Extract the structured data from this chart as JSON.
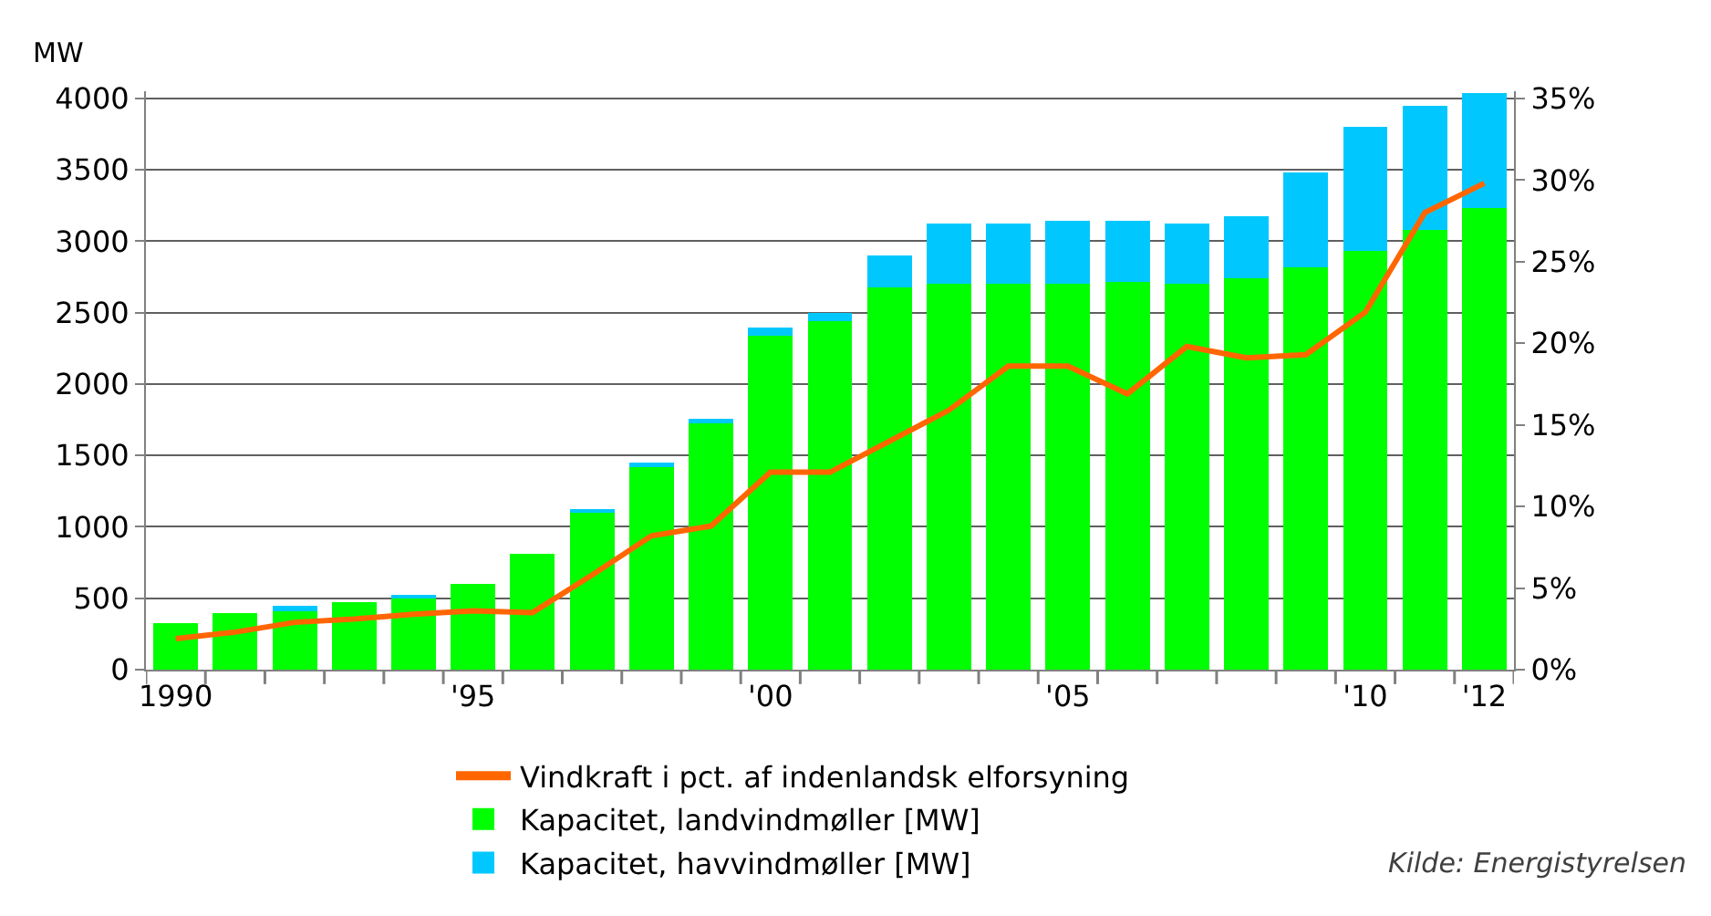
{
  "chart_data": {
    "type": "bar",
    "ylabel": "MW",
    "stacked": true,
    "categories": [
      "1990",
      null,
      null,
      null,
      null,
      "'95",
      null,
      null,
      null,
      null,
      "'00",
      null,
      null,
      null,
      null,
      "'05",
      null,
      null,
      null,
      null,
      "'10",
      null,
      "'12"
    ],
    "series": [
      {
        "name": "Kapacitet, landvindmøller [MW]",
        "color": "#00ff00",
        "values": [
          326,
          395,
          420,
          470,
          500,
          600,
          810,
          1105,
          1425,
          1730,
          2335,
          2440,
          2675,
          2700,
          2700,
          2700,
          2715,
          2700,
          2740,
          2820,
          2930,
          3080,
          3235
        ]
      },
      {
        "name": "Kapacitet, havvindmøller [MW]",
        "color": "#00c8ff",
        "values": [
          0,
          0,
          25,
          0,
          25,
          0,
          0,
          20,
          25,
          25,
          60,
          60,
          225,
          425,
          425,
          440,
          425,
          425,
          435,
          660,
          870,
          870,
          800
        ]
      },
      {
        "name": "Vindkraft i pct. af indenlandsk elforsyning",
        "type": "line",
        "axis": "y2",
        "color": "#ff6600",
        "values": [
          1.9,
          2.3,
          2.9,
          3.1,
          3.4,
          3.6,
          3.5,
          5.8,
          8.2,
          8.8,
          12.1,
          12.1,
          14.0,
          15.9,
          18.6,
          18.6,
          16.9,
          19.8,
          19.1,
          19.3,
          21.9,
          28.0,
          29.8
        ]
      }
    ],
    "ylim": [
      0,
      4050
    ],
    "yticks": [
      0,
      500,
      1000,
      1500,
      2000,
      2500,
      3000,
      3500,
      4000
    ],
    "y2lim": [
      0,
      35.44
    ],
    "y2ticks": [
      {
        "value": 0,
        "label": "0%"
      },
      {
        "value": 5,
        "label": "5%"
      },
      {
        "value": 10,
        "label": "10%"
      },
      {
        "value": 15,
        "label": "15%"
      },
      {
        "value": 20,
        "label": "20%"
      },
      {
        "value": 25,
        "label": "25%"
      },
      {
        "value": 30,
        "label": "30%"
      },
      {
        "value": 35,
        "label": "35%"
      }
    ],
    "grid": "y",
    "legend": "bottom",
    "marker": "none",
    "line_style": "solid",
    "annotations": [
      "Kilde: Energistyrelsen"
    ]
  }
}
